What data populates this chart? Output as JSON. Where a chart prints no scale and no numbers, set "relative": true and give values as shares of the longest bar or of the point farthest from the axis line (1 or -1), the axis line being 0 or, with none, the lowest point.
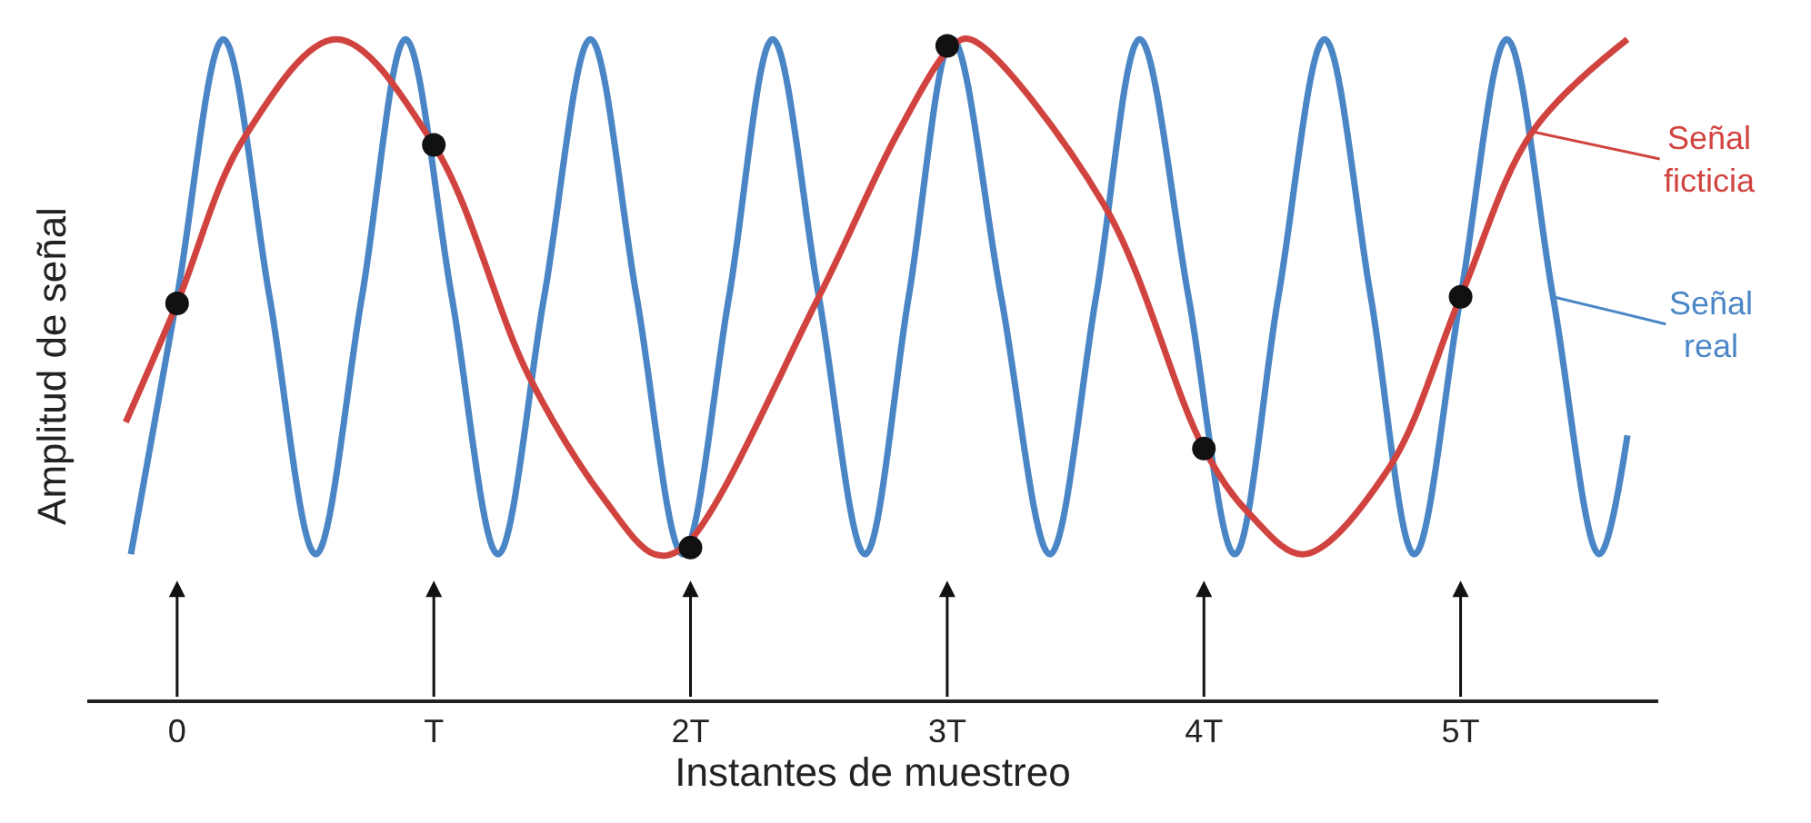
{
  "chart_data": {
    "type": "line",
    "relative": true,
    "xlabel": "Instantes de muestreo",
    "ylabel": "Amplitud de señal",
    "xlim": [
      -0.35,
      5.77
    ],
    "xticks": [
      {
        "value": 0,
        "label": "0"
      },
      {
        "value": 1,
        "label": "T"
      },
      {
        "value": 2,
        "label": "2T"
      },
      {
        "value": 3,
        "label": "3T"
      },
      {
        "value": 4,
        "label": "4T"
      },
      {
        "value": 5,
        "label": "5T"
      }
    ],
    "marker": "none",
    "line_style": "solid",
    "legend": "right",
    "series": [
      {
        "name": "Señal real",
        "color": "#4a86c5",
        "x": [
          -0.18,
          0.0,
          0.18,
          0.36,
          0.54,
          0.72,
          0.89,
          1.07,
          1.25,
          1.43,
          1.61,
          1.79,
          1.97,
          2.15,
          2.32,
          2.5,
          2.68,
          2.85,
          3.02,
          3.21,
          3.4,
          3.58,
          3.75,
          3.94,
          4.12,
          4.29,
          4.47,
          4.65,
          4.82,
          5.0,
          5.18,
          5.36,
          5.54,
          5.65
        ],
        "values": [
          0.22,
          0.61,
          1,
          0.61,
          0.22,
          0.61,
          1,
          0.61,
          0.22,
          0.61,
          1,
          0.61,
          0.22,
          0.61,
          1,
          0.61,
          0.22,
          0.61,
          1,
          0.61,
          0.22,
          0.61,
          1,
          0.61,
          0.22,
          0.61,
          1,
          0.61,
          0.22,
          0.61,
          1,
          0.61,
          0.22,
          0.4
        ]
      },
      {
        "name": "Señal ficticia",
        "color": "#d0433f",
        "x": [
          -0.2,
          0,
          0.26,
          0.62,
          1,
          1.37,
          1.67,
          1.86,
          1.97,
          2.5,
          2.81,
          3.02,
          3.09,
          3.61,
          4,
          4.18,
          4.39,
          4.72,
          5,
          5.28,
          5.65
        ],
        "values": [
          0.42,
          0.6,
          0.85,
          1,
          0.84,
          0.49,
          0.3,
          0.22,
          0.23,
          0.61,
          0.86,
          0.99,
          1,
          0.75,
          0.38,
          0.28,
          0.22,
          0.35,
          0.61,
          0.86,
          1
        ]
      },
      {
        "type": "scatter",
        "marker": "circle",
        "color": "#111111",
        "x": [
          0,
          1,
          2,
          3,
          4,
          5
        ],
        "values": [
          0.6,
          0.84,
          0.23,
          0.99,
          0.38,
          0.61
        ]
      }
    ]
  }
}
